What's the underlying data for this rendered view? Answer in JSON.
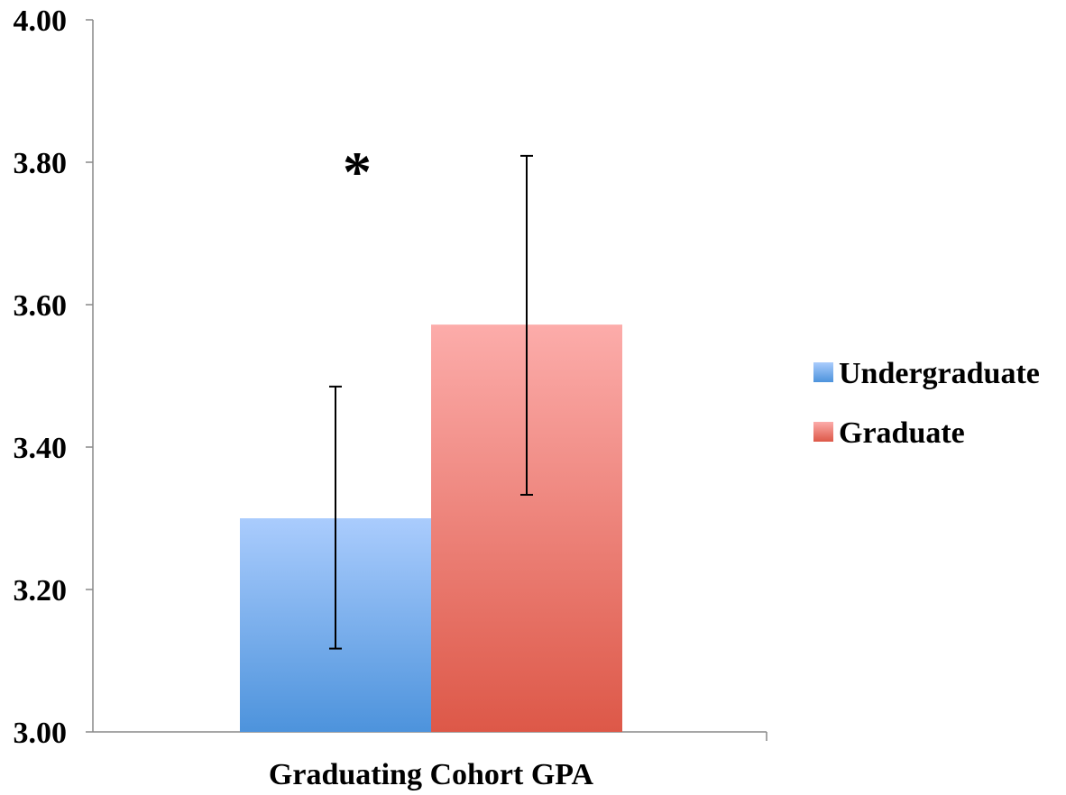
{
  "chart_data": {
    "type": "bar",
    "categories": [
      "Graduating Cohort GPA"
    ],
    "series": [
      {
        "name": "Undergraduate",
        "values": [
          3.3
        ],
        "error_low": [
          3.117
        ],
        "error_high": [
          3.485
        ],
        "color_top": "#aaccfd",
        "color_bottom": "#4d93dc"
      },
      {
        "name": "Graduate",
        "values": [
          3.572
        ],
        "error_low": [
          3.333
        ],
        "error_high": [
          3.809
        ],
        "color_top": "#fcacaa",
        "color_bottom": "#dd5848"
      }
    ],
    "ylim": [
      3.0,
      4.0
    ],
    "yticks": [
      "3.00",
      "3.20",
      "3.40",
      "3.60",
      "3.80",
      "4.00"
    ],
    "ytick_values": [
      3.0,
      3.2,
      3.4,
      3.6,
      3.8,
      4.0
    ],
    "xlabel": "",
    "ylabel": "",
    "title": "",
    "grid": false,
    "legend_position": "right",
    "annotations": [
      {
        "text": "*",
        "series_index": 0,
        "y": 3.8
      }
    ]
  }
}
